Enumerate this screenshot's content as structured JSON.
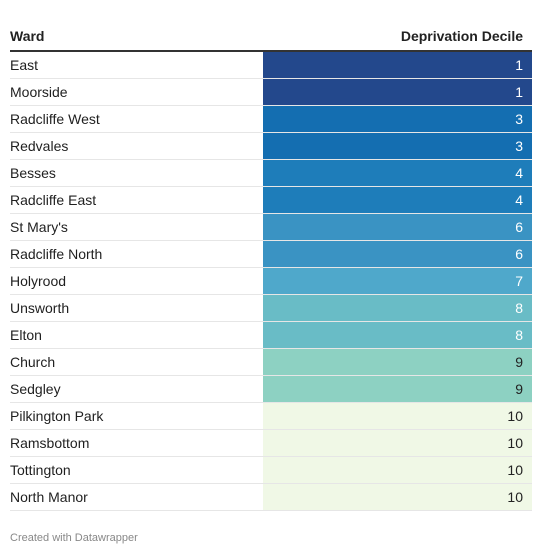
{
  "chart_data": {
    "type": "table",
    "columns": [
      "Ward",
      "Deprivation Decile"
    ],
    "rows": [
      {
        "ward": "East",
        "decile": 1
      },
      {
        "ward": "Moorside",
        "decile": 1
      },
      {
        "ward": "Radcliffe West",
        "decile": 3
      },
      {
        "ward": "Redvales",
        "decile": 3
      },
      {
        "ward": "Besses",
        "decile": 4
      },
      {
        "ward": "Radcliffe East",
        "decile": 4
      },
      {
        "ward": "St Mary's",
        "decile": 6
      },
      {
        "ward": "Radcliffe North",
        "decile": 6
      },
      {
        "ward": "Holyrood",
        "decile": 7
      },
      {
        "ward": "Unsworth",
        "decile": 8
      },
      {
        "ward": "Elton",
        "decile": 8
      },
      {
        "ward": "Church",
        "decile": 9
      },
      {
        "ward": "Sedgley",
        "decile": 9
      },
      {
        "ward": "Pilkington Park",
        "decile": 10
      },
      {
        "ward": "Ramsbottom",
        "decile": 10
      },
      {
        "ward": "Tottington",
        "decile": 10
      },
      {
        "ward": "North Manor",
        "decile": 10
      }
    ],
    "decile_colors": {
      "1": "#23488c",
      "3": "#146eb1",
      "4": "#1e7dba",
      "6": "#3a93c3",
      "7": "#4fa8cb",
      "8": "#69bcc6",
      "9": "#8dd1c2",
      "10": "#f0f8e6"
    },
    "light_text_color": "#ffffff",
    "dark_text_color": "#222222"
  },
  "footer": {
    "credit": "Created with Datawrapper"
  }
}
